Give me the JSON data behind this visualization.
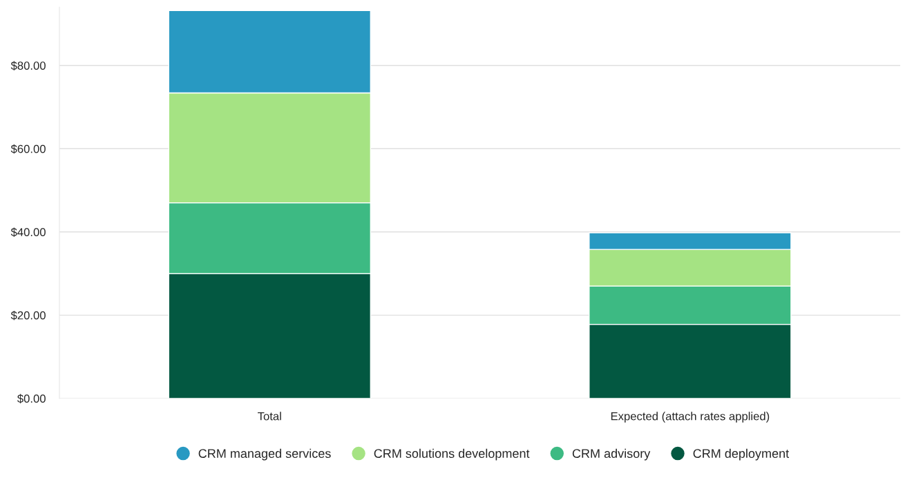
{
  "chart_data": {
    "type": "bar",
    "stacked": true,
    "categories": [
      "Total",
      "Expected (attach rates applied)"
    ],
    "series": [
      {
        "name": "CRM deployment",
        "color": "#035841",
        "values": [
          30.0,
          17.8
        ]
      },
      {
        "name": "CRM advisory",
        "color": "#3dba83",
        "values": [
          17.0,
          9.2
        ]
      },
      {
        "name": "CRM solutions development",
        "color": "#a5e383",
        "values": [
          26.4,
          8.8
        ]
      },
      {
        "name": "CRM managed services",
        "color": "#2899c2",
        "values": [
          19.8,
          4.0
        ]
      }
    ],
    "ylim": [
      0,
      94
    ],
    "yticks": [
      {
        "value": 0,
        "label": "$0.00"
      },
      {
        "value": 20,
        "label": "$20.00"
      },
      {
        "value": 40,
        "label": "$40.00"
      },
      {
        "value": 60,
        "label": "$60.00"
      },
      {
        "value": 80,
        "label": "$80.00"
      }
    ],
    "grid": "y",
    "legend": "bottom",
    "marker": "circle"
  }
}
